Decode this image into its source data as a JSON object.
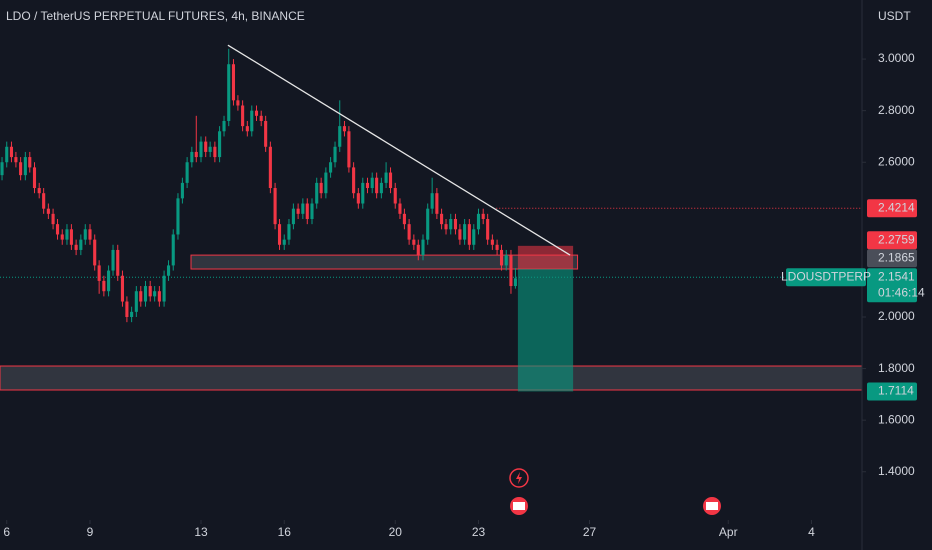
{
  "chart_data": {
    "type": "candlestick",
    "title": "LDO / TetherUS PERPETUAL FUTURES, 4h, BINANCE",
    "y_unit": "USDT",
    "symbol": "LDOUSDTPERP",
    "countdown": "01:46:14",
    "up_color": "#089981",
    "down_color": "#f23645",
    "x": [
      5.67,
      5.83,
      6,
      6.17,
      6.33,
      6.5,
      6.67,
      6.83,
      7,
      7.17,
      7.33,
      7.5,
      7.67,
      7.83,
      8,
      8.17,
      8.33,
      8.5,
      8.67,
      8.83,
      9,
      9.17,
      9.33,
      9.5,
      9.67,
      9.83,
      10,
      10.17,
      10.33,
      10.5,
      10.67,
      10.83,
      11,
      11.17,
      11.33,
      11.5,
      11.67,
      11.83,
      12,
      12.17,
      12.33,
      12.5,
      12.67,
      12.83,
      13,
      13.17,
      13.33,
      13.5,
      13.67,
      13.83,
      14,
      14.17,
      14.33,
      14.5,
      14.67,
      14.83,
      15,
      15.17,
      15.33,
      15.5,
      15.67,
      15.83,
      16,
      16.17,
      16.33,
      16.5,
      16.67,
      16.83,
      17,
      17.17,
      17.33,
      17.5,
      17.67,
      17.83,
      18,
      18.17,
      18.33,
      18.5,
      18.67,
      18.83,
      19,
      19.17,
      19.33,
      19.5,
      19.67,
      19.83,
      20,
      20.17,
      20.33,
      20.5,
      20.67,
      20.83,
      21,
      21.17,
      21.33,
      21.5,
      21.67,
      21.83,
      22,
      22.17,
      22.33,
      22.5,
      22.67,
      22.83,
      23,
      23.17,
      23.33,
      23.5,
      23.67,
      23.83,
      24,
      24.17,
      24.33
    ],
    "open": [
      2.6,
      2.55,
      2.6,
      2.66,
      2.62,
      2.6,
      2.55,
      2.62,
      2.58,
      2.5,
      2.48,
      2.42,
      2.4,
      2.36,
      2.32,
      2.3,
      2.34,
      2.28,
      2.26,
      2.3,
      2.34,
      2.3,
      2.2,
      2.14,
      2.1,
      2.18,
      2.26,
      2.16,
      2.06,
      2.0,
      2.02,
      2.1,
      2.06,
      2.12,
      2.08,
      2.1,
      2.06,
      2.16,
      2.2,
      2.32,
      2.46,
      2.52,
      2.6,
      2.64,
      2.62,
      2.68,
      2.64,
      2.66,
      2.62,
      2.72,
      2.76,
      2.98,
      2.84,
      2.82,
      2.74,
      2.72,
      2.8,
      2.78,
      2.76,
      2.66,
      2.5,
      2.36,
      2.28,
      2.3,
      2.36,
      2.42,
      2.4,
      2.44,
      2.38,
      2.44,
      2.52,
      2.48,
      2.56,
      2.6,
      2.66,
      2.74,
      2.72,
      2.58,
      2.48,
      2.44,
      2.52,
      2.5,
      2.54,
      2.48,
      2.52,
      2.56,
      2.5,
      2.44,
      2.4,
      2.36,
      2.3,
      2.28,
      2.24,
      2.3,
      2.42,
      2.48,
      2.4,
      2.36,
      2.34,
      2.38,
      2.34,
      2.3,
      2.36,
      2.28,
      2.34,
      2.4,
      2.38,
      2.3,
      2.28,
      2.26,
      2.2,
      2.24,
      2.12
    ],
    "high": [
      2.62,
      2.62,
      2.68,
      2.68,
      2.64,
      2.62,
      2.64,
      2.64,
      2.6,
      2.52,
      2.5,
      2.44,
      2.42,
      2.38,
      2.34,
      2.36,
      2.36,
      2.3,
      2.32,
      2.36,
      2.36,
      2.32,
      2.22,
      2.16,
      2.2,
      2.28,
      2.28,
      2.18,
      2.08,
      2.04,
      2.12,
      2.12,
      2.14,
      2.14,
      2.12,
      2.12,
      2.18,
      2.22,
      2.34,
      2.48,
      2.54,
      2.62,
      2.66,
      2.78,
      2.7,
      2.7,
      2.68,
      2.68,
      2.74,
      2.78,
      3.04,
      3.0,
      2.86,
      2.84,
      2.76,
      2.82,
      2.82,
      2.8,
      2.78,
      2.68,
      2.52,
      2.38,
      2.32,
      2.38,
      2.44,
      2.44,
      2.46,
      2.46,
      2.46,
      2.54,
      2.54,
      2.58,
      2.62,
      2.68,
      2.84,
      2.76,
      2.74,
      2.6,
      2.5,
      2.54,
      2.54,
      2.56,
      2.56,
      2.54,
      2.6,
      2.58,
      2.52,
      2.46,
      2.42,
      2.38,
      2.32,
      2.3,
      2.32,
      2.44,
      2.54,
      2.5,
      2.42,
      2.38,
      2.4,
      2.4,
      2.36,
      2.38,
      2.38,
      2.36,
      2.42,
      2.42,
      2.4,
      2.32,
      2.3,
      2.28,
      2.26,
      2.26,
      2.19
    ],
    "low": [
      2.53,
      2.53,
      2.58,
      2.6,
      2.58,
      2.53,
      2.53,
      2.56,
      2.48,
      2.46,
      2.4,
      2.38,
      2.34,
      2.3,
      2.28,
      2.28,
      2.26,
      2.24,
      2.24,
      2.28,
      2.28,
      2.18,
      2.09,
      2.08,
      2.08,
      2.16,
      2.14,
      2.04,
      1.98,
      1.98,
      2.0,
      2.04,
      2.04,
      2.06,
      2.06,
      2.04,
      2.04,
      2.14,
      2.18,
      2.3,
      2.44,
      2.5,
      2.58,
      2.6,
      2.6,
      2.62,
      2.62,
      2.6,
      2.6,
      2.7,
      2.74,
      2.82,
      2.8,
      2.72,
      2.7,
      2.7,
      2.76,
      2.74,
      2.64,
      2.48,
      2.34,
      2.26,
      2.26,
      2.28,
      2.34,
      2.38,
      2.38,
      2.36,
      2.36,
      2.42,
      2.46,
      2.46,
      2.54,
      2.58,
      2.64,
      2.7,
      2.56,
      2.46,
      2.42,
      2.42,
      2.48,
      2.48,
      2.46,
      2.46,
      2.5,
      2.48,
      2.42,
      2.38,
      2.34,
      2.28,
      2.26,
      2.22,
      2.22,
      2.28,
      2.4,
      2.38,
      2.34,
      2.32,
      2.32,
      2.32,
      2.28,
      2.28,
      2.26,
      2.26,
      2.32,
      2.36,
      2.28,
      2.26,
      2.24,
      2.18,
      2.18,
      2.09,
      2.11
    ],
    "close": [
      2.55,
      2.6,
      2.66,
      2.62,
      2.6,
      2.55,
      2.62,
      2.58,
      2.5,
      2.48,
      2.42,
      2.4,
      2.36,
      2.32,
      2.3,
      2.34,
      2.28,
      2.26,
      2.3,
      2.34,
      2.3,
      2.2,
      2.14,
      2.1,
      2.18,
      2.26,
      2.16,
      2.06,
      2.0,
      2.02,
      2.1,
      2.06,
      2.12,
      2.08,
      2.1,
      2.06,
      2.16,
      2.2,
      2.32,
      2.46,
      2.52,
      2.6,
      2.64,
      2.62,
      2.68,
      2.64,
      2.66,
      2.62,
      2.72,
      2.76,
      2.98,
      2.84,
      2.82,
      2.74,
      2.72,
      2.8,
      2.78,
      2.76,
      2.66,
      2.5,
      2.36,
      2.28,
      2.3,
      2.36,
      2.42,
      2.4,
      2.44,
      2.38,
      2.44,
      2.52,
      2.48,
      2.56,
      2.6,
      2.66,
      2.74,
      2.72,
      2.58,
      2.48,
      2.44,
      2.52,
      2.5,
      2.54,
      2.48,
      2.52,
      2.56,
      2.5,
      2.44,
      2.4,
      2.36,
      2.3,
      2.28,
      2.24,
      2.3,
      2.42,
      2.48,
      2.4,
      2.36,
      2.34,
      2.38,
      2.34,
      2.3,
      2.36,
      2.28,
      2.34,
      2.4,
      2.38,
      2.3,
      2.28,
      2.26,
      2.2,
      2.24,
      2.12,
      2.15
    ],
    "xlim": [
      5.757,
      36.82
    ],
    "xticks": [
      6,
      9,
      13,
      16,
      20,
      23,
      27,
      {
        "value": 32,
        "label": "Apr"
      },
      {
        "value": 35,
        "label": "4"
      }
    ],
    "ylim": [
      1.213,
      3.229
    ],
    "yticks": [
      {
        "value": 3,
        "label": "3.0000"
      },
      {
        "value": 2.8,
        "label": "2.8000"
      },
      {
        "value": 2.6,
        "label": "2.6000"
      },
      {
        "value": 2,
        "label": "2.0000"
      },
      {
        "value": 1.8,
        "label": "1.8000"
      },
      {
        "value": 1.6,
        "label": "1.6000"
      },
      {
        "value": 1.4,
        "label": "1.4000"
      }
    ],
    "trendline": {
      "x": [
        13.97,
        26.3
      ],
      "y": [
        3.054,
        2.24
      ],
      "color": "#e6e6e6"
    },
    "zones": [
      {
        "x": [
          12.64,
          26.57
        ],
        "y": [
          2.186,
          2.24
        ]
      },
      {
        "x": [
          5.757,
          36.82
        ],
        "y": [
          1.717,
          1.81
        ]
      }
    ],
    "position": {
      "x": [
        24.42,
        26.41
      ],
      "entry": 2.1865,
      "stop": 2.2759,
      "target": 1.7114,
      "stop_color": "#f23645",
      "entry_color": "#4a4e59",
      "target_color": "#089981"
    },
    "levels": [
      {
        "value": 2.4214,
        "color": "#f23645",
        "line_x": [
          23.64,
          36.82
        ]
      },
      {
        "value": 2.1541,
        "color": "#089981",
        "line_x": [
          5.757,
          36.82
        ]
      }
    ]
  }
}
